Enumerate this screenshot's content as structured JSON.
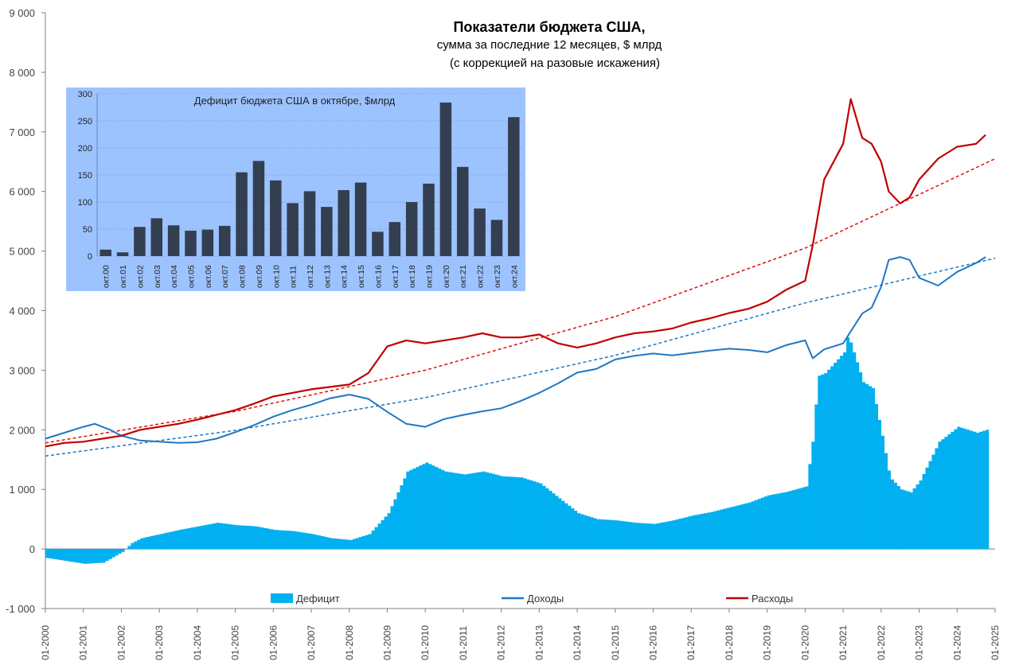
{
  "chart_data": [
    {
      "type": "bar+line",
      "title": "Показатели бюджета США,",
      "subtitle": "сумма за последние 12 месяцев, $ млрд",
      "subtitle2": "(с коррекцией на разовые искажения)",
      "ylim": [
        -1000,
        9000
      ],
      "y_ticks": [
        -1000,
        0,
        1000,
        2000,
        3000,
        4000,
        5000,
        6000,
        7000,
        8000,
        9000
      ],
      "y_tick_labels": [
        "-1 000",
        "0",
        "1 000",
        "2 000",
        "3 000",
        "4 000",
        "5 000",
        "6 000",
        "7 000",
        "8 000",
        "9 000"
      ],
      "x_range": [
        2000.0,
        2025.0
      ],
      "x_tick_labels": [
        "01-2000",
        "01-2001",
        "01-2002",
        "01-2003",
        "01-2004",
        "01-2005",
        "01-2006",
        "01-2007",
        "01-2008",
        "01-2009",
        "01-2010",
        "01-2011",
        "01-2012",
        "01-2013",
        "01-2014",
        "01-2015",
        "01-2016",
        "01-2017",
        "01-2018",
        "01-2019",
        "01-2020",
        "01-2021",
        "01-2022",
        "01-2023",
        "01-2024",
        "01-2025"
      ],
      "legend_placement": "bottom",
      "grid": false,
      "legend": {
        "deficit": "Дефицит",
        "revenue": "Доходы",
        "spending": "Расходы"
      },
      "colors": {
        "deficit": "#00b0f0",
        "revenue": "#1f77c4",
        "spending": "#c00000",
        "revenue_trend": "#1f77c4",
        "spending_trend": "#e01010"
      },
      "series": [
        {
          "name": "Дефицит",
          "kind": "bar",
          "x": [
            2000.0,
            2000.5,
            2001.0,
            2001.5,
            2002.0,
            2002.25,
            2002.5,
            2003.0,
            2003.5,
            2004.0,
            2004.5,
            2005.0,
            2005.5,
            2006.0,
            2006.5,
            2007.0,
            2007.5,
            2008.0,
            2008.5,
            2009.0,
            2009.5,
            2010.0,
            2010.5,
            2011.0,
            2011.5,
            2012.0,
            2012.5,
            2013.0,
            2013.5,
            2014.0,
            2014.5,
            2015.0,
            2015.5,
            2016.0,
            2016.5,
            2017.0,
            2017.5,
            2018.0,
            2018.5,
            2019.0,
            2019.5,
            2020.0,
            2020.2,
            2020.3,
            2020.5,
            2021.0,
            2021.1,
            2021.25,
            2021.5,
            2021.75,
            2022.0,
            2022.2,
            2022.5,
            2022.75,
            2023.0,
            2023.5,
            2024.0,
            2024.5,
            2024.75
          ],
          "values": [
            -150,
            -200,
            -250,
            -230,
            -50,
            100,
            180,
            250,
            320,
            380,
            440,
            400,
            380,
            320,
            300,
            250,
            180,
            150,
            250,
            600,
            1300,
            1450,
            1300,
            1250,
            1300,
            1220,
            1200,
            1100,
            850,
            600,
            500,
            480,
            440,
            420,
            480,
            560,
            620,
            700,
            780,
            900,
            960,
            1050,
            1950,
            2900,
            2950,
            3300,
            3600,
            3300,
            2800,
            2700,
            1900,
            1200,
            1000,
            950,
            1150,
            1800,
            2050,
            1950,
            2000
          ]
        },
        {
          "name": "Доходы",
          "kind": "line",
          "x": [
            2000.0,
            2000.5,
            2001.0,
            2001.3,
            2001.7,
            2002.0,
            2002.5,
            2003.0,
            2003.5,
            2004.0,
            2004.5,
            2005.0,
            2005.5,
            2006.0,
            2006.5,
            2007.0,
            2007.5,
            2008.0,
            2008.5,
            2009.0,
            2009.5,
            2010.0,
            2010.5,
            2011.0,
            2011.5,
            2012.0,
            2012.5,
            2013.0,
            2013.5,
            2014.0,
            2014.5,
            2015.0,
            2015.5,
            2016.0,
            2016.5,
            2017.0,
            2017.5,
            2018.0,
            2018.5,
            2019.0,
            2019.5,
            2020.0,
            2020.2,
            2020.5,
            2021.0,
            2021.25,
            2021.5,
            2021.75,
            2022.0,
            2022.2,
            2022.5,
            2022.75,
            2023.0,
            2023.5,
            2024.0,
            2024.5,
            2024.75
          ],
          "values": [
            1850,
            1950,
            2050,
            2100,
            2000,
            1900,
            1820,
            1800,
            1780,
            1790,
            1850,
            1960,
            2080,
            2220,
            2330,
            2420,
            2530,
            2590,
            2520,
            2300,
            2100,
            2050,
            2180,
            2250,
            2310,
            2360,
            2480,
            2620,
            2780,
            2960,
            3020,
            3180,
            3240,
            3280,
            3250,
            3290,
            3330,
            3360,
            3340,
            3300,
            3420,
            3500,
            3200,
            3350,
            3450,
            3700,
            3950,
            4050,
            4400,
            4850,
            4900,
            4850,
            4550,
            4420,
            4650,
            4800,
            4900
          ]
        },
        {
          "name": "Расходы",
          "kind": "line",
          "x": [
            2000.0,
            2000.5,
            2001.0,
            2001.5,
            2002.0,
            2002.5,
            2003.0,
            2003.5,
            2004.0,
            2004.5,
            2005.0,
            2005.5,
            2006.0,
            2006.5,
            2007.0,
            2007.5,
            2008.0,
            2008.5,
            2009.0,
            2009.5,
            2010.0,
            2010.5,
            2011.0,
            2011.5,
            2012.0,
            2012.5,
            2013.0,
            2013.5,
            2014.0,
            2014.5,
            2015.0,
            2015.5,
            2016.0,
            2016.5,
            2017.0,
            2017.5,
            2018.0,
            2018.5,
            2019.0,
            2019.5,
            2020.0,
            2020.2,
            2020.5,
            2021.0,
            2021.2,
            2021.5,
            2021.75,
            2022.0,
            2022.2,
            2022.5,
            2022.75,
            2023.0,
            2023.5,
            2024.0,
            2024.5,
            2024.75
          ],
          "values": [
            1720,
            1780,
            1800,
            1850,
            1900,
            2000,
            2050,
            2100,
            2170,
            2250,
            2330,
            2440,
            2560,
            2620,
            2680,
            2720,
            2760,
            2950,
            3400,
            3500,
            3450,
            3500,
            3550,
            3620,
            3550,
            3550,
            3600,
            3450,
            3380,
            3450,
            3550,
            3620,
            3650,
            3700,
            3800,
            3870,
            3960,
            4030,
            4150,
            4350,
            4500,
            5100,
            6200,
            6800,
            7550,
            6900,
            6800,
            6500,
            6000,
            5800,
            5900,
            6200,
            6550,
            6750,
            6800,
            6950
          ]
        },
        {
          "name": "",
          "kind": "trend",
          "x": [
            2000.0,
            2005.0,
            2010.0,
            2015.0,
            2020.0,
            2025.0
          ],
          "values": [
            1560,
            1990,
            2540,
            3250,
            4130,
            4880
          ]
        },
        {
          "name": "",
          "kind": "trend",
          "x": [
            2000.0,
            2005.0,
            2010.0,
            2015.0,
            2020.0,
            2025.0
          ],
          "values": [
            1780,
            2310,
            3000,
            3900,
            5050,
            6550
          ]
        }
      ]
    },
    {
      "type": "bar",
      "title": "Дефицит бюджета США в октябре, $млрд",
      "ylim": [
        0,
        300
      ],
      "y_ticks": [
        0,
        50,
        100,
        150,
        200,
        250,
        300
      ],
      "categories": [
        "окт.00",
        "окт.01",
        "окт.02",
        "окт.03",
        "окт.04",
        "окт.05",
        "окт.06",
        "окт.07",
        "окт.08",
        "окт.09",
        "окт.10",
        "окт.11",
        "окт.12",
        "окт.13",
        "окт.14",
        "окт.15",
        "окт.16",
        "окт.17",
        "окт.18",
        "окт.19",
        "окт.20",
        "окт.21",
        "окт.22",
        "окт.23",
        "окт.24"
      ],
      "values": [
        12,
        7,
        54,
        70,
        57,
        47,
        49,
        56,
        155,
        176,
        140,
        98,
        120,
        91,
        122,
        136,
        45,
        63,
        100,
        134,
        284,
        165,
        88,
        67,
        257
      ],
      "colors": {
        "bar": "#333f50",
        "background": "#9dc3ff"
      },
      "grid": true
    }
  ]
}
